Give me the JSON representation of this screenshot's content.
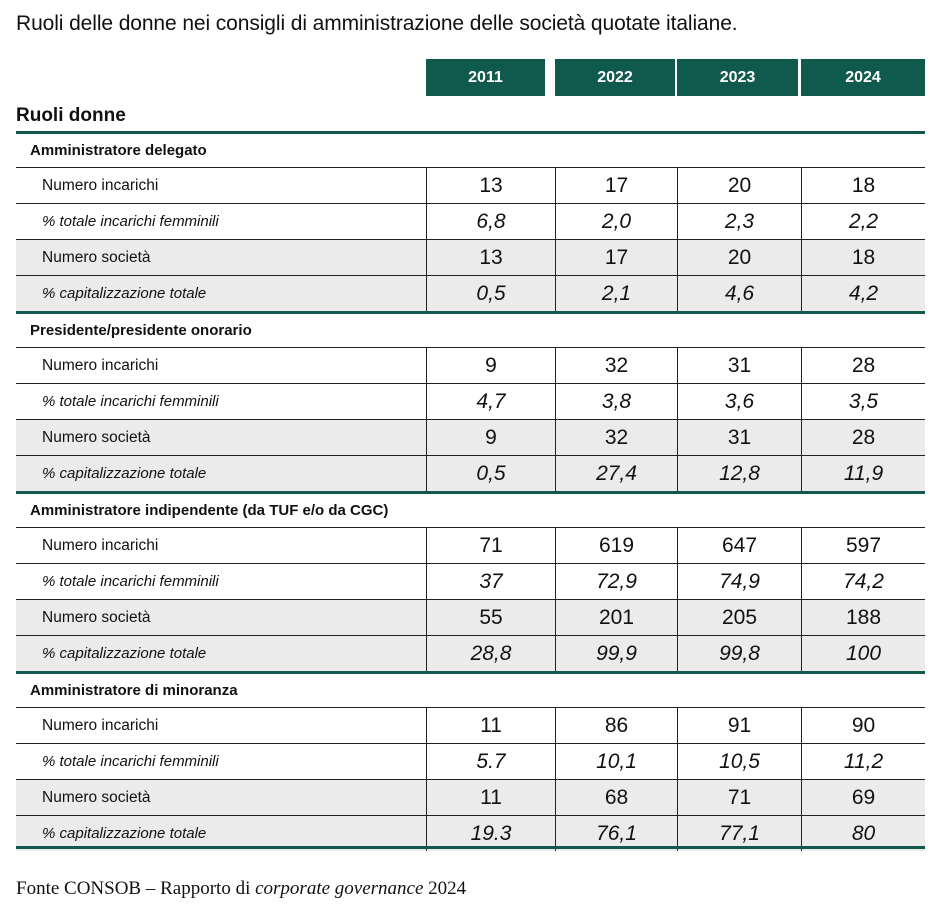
{
  "title": "Ruoli delle donne nei consigli di amministrazione delle società quotate italiane.",
  "years": [
    "2011",
    "2022",
    "2023",
    "2024"
  ],
  "roles_header": "Ruoli donne",
  "sections": [
    {
      "title": "Amministratore delegato",
      "rows": [
        {
          "label": "Numero incarichi",
          "values": [
            "13",
            "17",
            "20",
            "18"
          ]
        },
        {
          "label": "% totale incarichi femminili",
          "values": [
            "6,8",
            "2,0",
            "2,3",
            "2,2"
          ]
        },
        {
          "label": "Numero società",
          "values": [
            "13",
            "17",
            "20",
            "18"
          ]
        },
        {
          "label": "% capitalizzazione totale",
          "values": [
            "0,5",
            "2,1",
            "4,6",
            "4,2"
          ]
        }
      ]
    },
    {
      "title": "Presidente/presidente onorario",
      "rows": [
        {
          "label": "Numero incarichi",
          "values": [
            "9",
            "32",
            "31",
            "28"
          ]
        },
        {
          "label": "% totale incarichi femminili",
          "values": [
            "4,7",
            "3,8",
            "3,6",
            "3,5"
          ]
        },
        {
          "label": "Numero società",
          "values": [
            "9",
            "32",
            "31",
            "28"
          ]
        },
        {
          "label": "% capitalizzazione totale",
          "values": [
            "0,5",
            "27,4",
            "12,8",
            "11,9"
          ]
        }
      ]
    },
    {
      "title": "Amministratore indipendente (da TUF e/o da CGC)",
      "rows": [
        {
          "label": "Numero incarichi",
          "values": [
            "71",
            "619",
            "647",
            "597"
          ]
        },
        {
          "label": "% totale incarichi femminili",
          "values": [
            "37",
            "72,9",
            "74,9",
            "74,2"
          ]
        },
        {
          "label": "Numero società",
          "values": [
            "55",
            "201",
            "205",
            "188"
          ]
        },
        {
          "label": "% capitalizzazione totale",
          "values": [
            "28,8",
            "99,9",
            "99,8",
            "100"
          ]
        }
      ]
    },
    {
      "title": "Amministratore di minoranza",
      "rows": [
        {
          "label": "Numero incarichi",
          "values": [
            "11",
            "86",
            "91",
            "90"
          ]
        },
        {
          "label": "% totale incarichi femminili",
          "values": [
            "5.7",
            "10,1",
            "10,5",
            "11,2"
          ]
        },
        {
          "label": "Numero società",
          "values": [
            "11",
            "68",
            "71",
            "69"
          ]
        },
        {
          "label": "% capitalizzazione totale",
          "values": [
            "19.3",
            "76,1",
            "77,1",
            "80"
          ]
        }
      ]
    }
  ],
  "source": {
    "prefix": "Fonte CONSOB – Rapporto di ",
    "italic": "corporate governance",
    "suffix": " 2024"
  },
  "colors": {
    "accent": "#0f5a4d",
    "row_gray": "#ebebeb"
  }
}
